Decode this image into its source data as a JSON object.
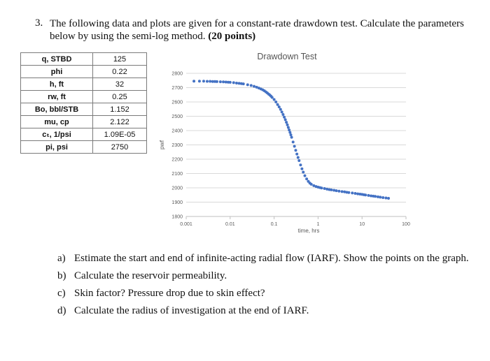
{
  "question": {
    "number": "3.",
    "text": "The following data and plots are given for a constant-rate drawdown test. Calculate the parameters below by using the semi-log method.",
    "points": "(20 points)"
  },
  "params_table": [
    {
      "name": "q, STBD",
      "value": "125"
    },
    {
      "name": "phi",
      "value": "0.22"
    },
    {
      "name": "h, ft",
      "value": "32"
    },
    {
      "name": "rw, ft",
      "value": "0.25"
    },
    {
      "name": "Bo, bbl/STB",
      "value": "1.152"
    },
    {
      "name": "mu, cp",
      "value": "2.122"
    },
    {
      "name": "cₜ, 1/psi",
      "value": "1.09E-05"
    },
    {
      "name": "pi, psi",
      "value": "2750"
    }
  ],
  "chart_data": {
    "type": "scatter",
    "title": "Drawdown Test",
    "xlabel": "time, hrs",
    "ylabel": "pwf",
    "x_scale": "log",
    "xlim": [
      0.001,
      100
    ],
    "ylim": [
      1800,
      2800
    ],
    "x_ticks": [
      "0.001",
      "0.01",
      "0.1",
      "1",
      "10",
      "100"
    ],
    "y_ticks": [
      "1800",
      "1900",
      "2000",
      "2100",
      "2200",
      "2300",
      "2400",
      "2500",
      "2600",
      "2700",
      "2800"
    ],
    "grid": "horizontal",
    "marker_color": "#4472c4",
    "points": [
      [
        0.0015,
        2745
      ],
      [
        0.002,
        2745
      ],
      [
        0.0025,
        2745
      ],
      [
        0.003,
        2744
      ],
      [
        0.0035,
        2744
      ],
      [
        0.004,
        2743
      ],
      [
        0.0045,
        2743
      ],
      [
        0.005,
        2742
      ],
      [
        0.006,
        2741
      ],
      [
        0.007,
        2740
      ],
      [
        0.008,
        2739
      ],
      [
        0.009,
        2738
      ],
      [
        0.01,
        2737
      ],
      [
        0.012,
        2735
      ],
      [
        0.014,
        2732
      ],
      [
        0.016,
        2730
      ],
      [
        0.018,
        2728
      ],
      [
        0.02,
        2726
      ],
      [
        0.025,
        2720
      ],
      [
        0.03,
        2715
      ],
      [
        0.035,
        2709
      ],
      [
        0.04,
        2703
      ],
      [
        0.045,
        2697
      ],
      [
        0.05,
        2691
      ],
      [
        0.055,
        2685
      ],
      [
        0.06,
        2678
      ],
      [
        0.065,
        2670
      ],
      [
        0.07,
        2663
      ],
      [
        0.075,
        2655
      ],
      [
        0.08,
        2648
      ],
      [
        0.085,
        2640
      ],
      [
        0.09,
        2632
      ],
      [
        0.1,
        2617
      ],
      [
        0.11,
        2600
      ],
      [
        0.12,
        2582
      ],
      [
        0.13,
        2565
      ],
      [
        0.14,
        2548
      ],
      [
        0.15,
        2530
      ],
      [
        0.16,
        2512
      ],
      [
        0.17,
        2494
      ],
      [
        0.18,
        2476
      ],
      [
        0.19,
        2458
      ],
      [
        0.2,
        2440
      ],
      [
        0.21,
        2422
      ],
      [
        0.22,
        2404
      ],
      [
        0.23,
        2387
      ],
      [
        0.24,
        2370
      ],
      [
        0.25,
        2353
      ],
      [
        0.27,
        2320
      ],
      [
        0.29,
        2290
      ],
      [
        0.31,
        2262
      ],
      [
        0.33,
        2236
      ],
      [
        0.35,
        2212
      ],
      [
        0.37,
        2190
      ],
      [
        0.4,
        2160
      ],
      [
        0.43,
        2133
      ],
      [
        0.46,
        2110
      ],
      [
        0.5,
        2085
      ],
      [
        0.55,
        2062
      ],
      [
        0.6,
        2045
      ],
      [
        0.65,
        2033
      ],
      [
        0.7,
        2025
      ],
      [
        0.8,
        2015
      ],
      [
        0.9,
        2009
      ],
      [
        1.0,
        2005
      ],
      [
        1.1,
        2002
      ],
      [
        1.2,
        1999
      ],
      [
        1.4,
        1995
      ],
      [
        1.6,
        1991
      ],
      [
        1.8,
        1988
      ],
      [
        2.0,
        1986
      ],
      [
        2.3,
        1983
      ],
      [
        2.6,
        1980
      ],
      [
        3.0,
        1977
      ],
      [
        3.5,
        1974
      ],
      [
        4.0,
        1972
      ],
      [
        4.5,
        1969
      ],
      [
        5.0,
        1967
      ],
      [
        6.0,
        1964
      ],
      [
        7.0,
        1961
      ],
      [
        8.0,
        1958
      ],
      [
        9.0,
        1956
      ],
      [
        10.0,
        1954
      ],
      [
        11.0,
        1952
      ],
      [
        12.0,
        1950
      ],
      [
        14.0,
        1947
      ],
      [
        16.0,
        1944
      ],
      [
        18.0,
        1942
      ],
      [
        20.0,
        1940
      ],
      [
        23.0,
        1937
      ],
      [
        26.0,
        1935
      ],
      [
        30.0,
        1932
      ],
      [
        35.0,
        1929
      ],
      [
        40.0,
        1927
      ]
    ]
  },
  "tasks": [
    {
      "label": "a)",
      "text": "Estimate the start and end of infinite-acting radial flow (IARF). Show the points on the graph."
    },
    {
      "label": "b)",
      "text": "Calculate the reservoir permeability."
    },
    {
      "label": "c)",
      "text": "Skin factor? Pressure drop due to skin effect?"
    },
    {
      "label": "d)",
      "text": "Calculate the radius of investigation at the end of IARF."
    }
  ]
}
